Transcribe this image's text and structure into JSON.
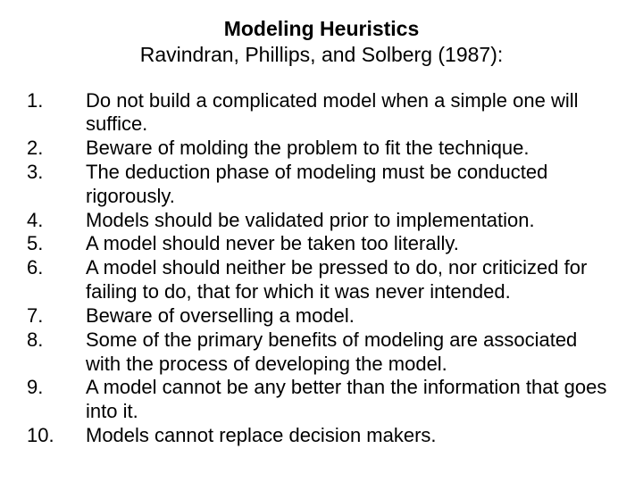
{
  "header": {
    "title": "Modeling Heuristics",
    "subtitle": "Ravindran, Phillips, and Solberg (1987):"
  },
  "items": [
    {
      "num": "1.",
      "text": "Do not build a complicated model when a simple one will suffice."
    },
    {
      "num": "2.",
      "text": "Beware of molding the problem to fit the technique."
    },
    {
      "num": "3.",
      "text": "The deduction phase of modeling must be conducted rigorously."
    },
    {
      "num": "4.",
      "text": "Models should be validated prior to implementation."
    },
    {
      "num": "5.",
      "text": "A model should never be taken too literally."
    },
    {
      "num": "6.",
      "text": "A model should neither be pressed to do, nor criticized for failing to do, that for which it was never intended."
    },
    {
      "num": "7.",
      "text": "Beware of overselling a model."
    },
    {
      "num": "8.",
      "text": "Some of the primary benefits of modeling are associated with the process of developing the model."
    },
    {
      "num": "9.",
      "text": "A model cannot be any better than the information that goes into it."
    },
    {
      "num": "10.",
      "text": "Models cannot replace decision makers."
    }
  ],
  "style": {
    "background_color": "#ffffff",
    "text_color": "#000000",
    "title_fontsize": 23,
    "body_fontsize": 22,
    "font_family": "Arial"
  }
}
